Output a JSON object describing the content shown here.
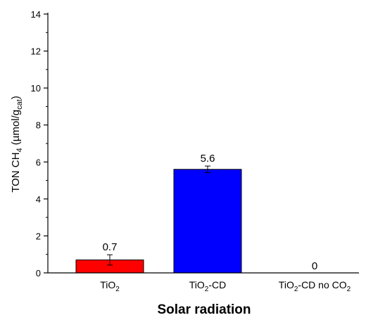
{
  "chart_data": {
    "type": "bar",
    "categories": [
      "TiO2",
      "TiO2-CD",
      "TiO2-CD  no CO2"
    ],
    "category_parts": [
      {
        "main": "TiO",
        "sub": "2",
        "rest": ""
      },
      {
        "main": "TiO",
        "sub": "2",
        "rest": "-CD"
      },
      {
        "main": "TiO",
        "sub": "2",
        "rest": "-CD  no CO",
        "sub2": "2"
      }
    ],
    "values": [
      0.7,
      5.6,
      0
    ],
    "errors": [
      0.28,
      0.18,
      0
    ],
    "data_labels": [
      "0.7",
      "5.6",
      "0"
    ],
    "colors": [
      "#ff0000",
      "#0000ff",
      "#ffffff"
    ],
    "xlabel": "Solar radiation",
    "ylabel": "TON CH4 (µmol/gcat)",
    "ylabel_parts": {
      "a": "TON CH",
      "sub1": "4",
      "b": " (µmol/g",
      "sub2": "cat",
      "c": ")"
    },
    "ylim": [
      0,
      14
    ],
    "yticks": [
      0,
      2,
      4,
      6,
      8,
      10,
      12,
      14
    ],
    "grid": false
  }
}
